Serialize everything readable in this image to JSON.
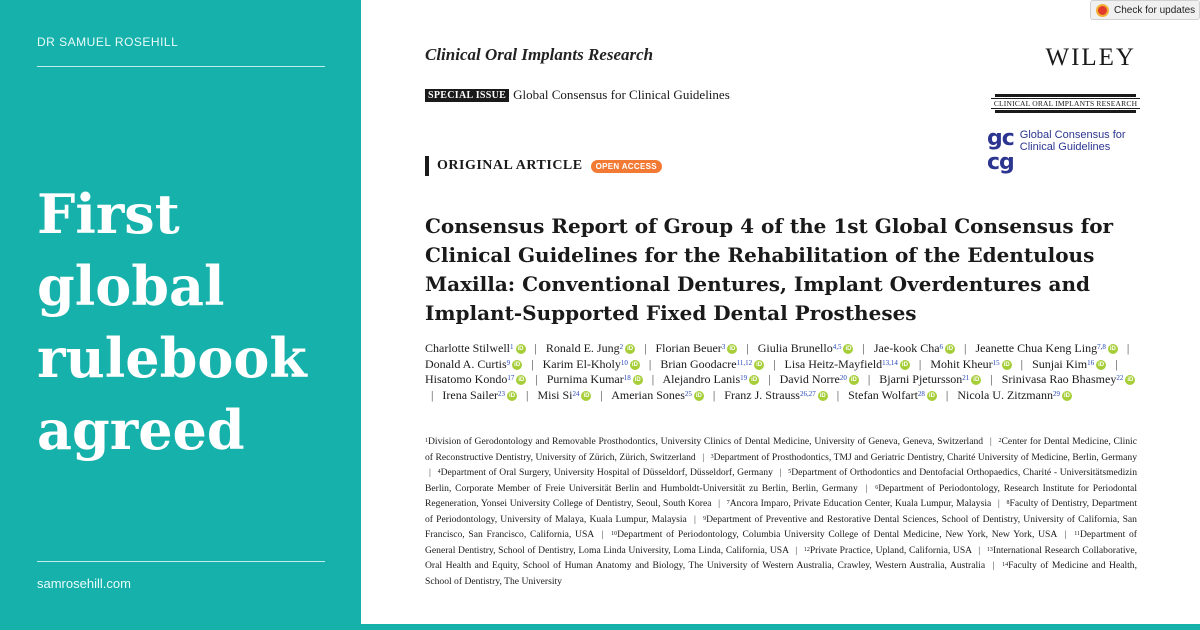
{
  "left": {
    "author_name": "DR SAMUEL ROSEHILL",
    "headline": "First global rulebook agreed",
    "site_url": "samrosehill.com"
  },
  "doc": {
    "check_updates": "Check for updates",
    "journal": "Clinical Oral Implants Research",
    "publisher": "WILEY",
    "journal_banner": "CLINICAL ORAL IMPLANTS RESEARCH",
    "special_tag": "SPECIAL ISSUE",
    "special_title": "Global Consensus for Clinical Guidelines",
    "gccg_mark_top": "gc",
    "gccg_mark_bottom": "cg",
    "gccg_line1": "Global Consensus for",
    "gccg_line2": "Clinical Guidelines",
    "article_type": "ORIGINAL ARTICLE",
    "open_access": "OPEN ACCESS",
    "title": "Consensus Report of Group 4 of the 1st Global Consensus for Clinical Guidelines for the Rehabilitation of the Edentulous Maxilla: Conventional Dentures, Implant Overdentures and Implant-Supported Fixed Dental Prostheses",
    "authors": [
      {
        "name": "Charlotte Stilwell",
        "sup": "1"
      },
      {
        "name": "Ronald E. Jung",
        "sup": "2"
      },
      {
        "name": "Florian Beuer",
        "sup": "3"
      },
      {
        "name": "Giulia Brunello",
        "sup": "4,5"
      },
      {
        "name": "Jae-kook Cha",
        "sup": "6"
      },
      {
        "name": "Jeanette Chua Keng Ling",
        "sup": "7,8"
      },
      {
        "name": "Donald A. Curtis",
        "sup": "9"
      },
      {
        "name": "Karim El-Kholy",
        "sup": "10"
      },
      {
        "name": "Brian Goodacre",
        "sup": "11,12"
      },
      {
        "name": "Lisa Heitz-Mayfield",
        "sup": "13,14"
      },
      {
        "name": "Mohit Kheur",
        "sup": "15"
      },
      {
        "name": "Sunjai Kim",
        "sup": "16"
      },
      {
        "name": "Hisatomo Kondo",
        "sup": "17"
      },
      {
        "name": "Purnima Kumar",
        "sup": "18"
      },
      {
        "name": "Alejandro Lanis",
        "sup": "19"
      },
      {
        "name": "David Norre",
        "sup": "20"
      },
      {
        "name": "Bjarni Pjetursson",
        "sup": "21"
      },
      {
        "name": "Srinivasa Rao Bhasmey",
        "sup": "22"
      },
      {
        "name": "Irena Sailer",
        "sup": "23"
      },
      {
        "name": "Misi Si",
        "sup": "24"
      },
      {
        "name": "Amerian Sones",
        "sup": "25"
      },
      {
        "name": "Franz J. Strauss",
        "sup": "26,27"
      },
      {
        "name": "Stefan Wolfart",
        "sup": "28"
      },
      {
        "name": "Nicola U. Zitzmann",
        "sup": "29"
      }
    ],
    "affiliations": [
      {
        "n": "1",
        "text": "Division of Gerodontology and Removable Prosthodontics, University Clinics of Dental Medicine, University of Geneva, Geneva, Switzerland"
      },
      {
        "n": "2",
        "text": "Center for Dental Medicine, Clinic of Reconstructive Dentistry, University of Zürich, Zürich, Switzerland"
      },
      {
        "n": "3",
        "text": "Department of Prosthodontics, TMJ and Geriatric Dentistry, Charité University of Medicine, Berlin, Germany"
      },
      {
        "n": "4",
        "text": "Department of Oral Surgery, University Hospital of Düsseldorf, Düsseldorf, Germany"
      },
      {
        "n": "5",
        "text": "Department of Orthodontics and Dentofacial Orthopaedics, Charité - Universitätsmedizin Berlin, Corporate Member of Freie Universität Berlin and Humboldt-Universität zu Berlin, Berlin, Germany"
      },
      {
        "n": "6",
        "text": "Department of Periodontology, Research Institute for Periodontal Regeneration, Yonsei University College of Dentistry, Seoul, South Korea"
      },
      {
        "n": "7",
        "text": "Ancora Imparo, Private Education Center, Kuala Lumpur, Malaysia"
      },
      {
        "n": "8",
        "text": "Faculty of Dentistry, Department of Periodontology, University of Malaya, Kuala Lumpur, Malaysia"
      },
      {
        "n": "9",
        "text": "Department of Preventive and Restorative Dental Sciences, School of Dentistry, University of California, San Francisco, San Francisco, California, USA"
      },
      {
        "n": "10",
        "text": "Department of Periodontology, Columbia University College of Dental Medicine, New York, New York, USA"
      },
      {
        "n": "11",
        "text": "Department of General Dentistry, School of Dentistry, Loma Linda University, Loma Linda, California, USA"
      },
      {
        "n": "12",
        "text": "Private Practice, Upland, California, USA"
      },
      {
        "n": "13",
        "text": "International Research Collaborative, Oral Health and Equity, School of Human Anatomy and Biology, The University of Western Australia, Crawley, Western Australia, Australia"
      },
      {
        "n": "14",
        "text": "Faculty of Medicine and Health, School of Dentistry, The University"
      }
    ]
  }
}
